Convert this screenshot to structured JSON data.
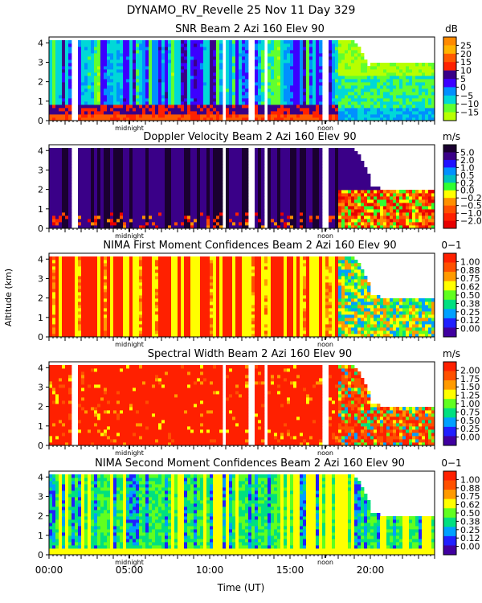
{
  "figure": {
    "title": "DYNAMO_RV_Revelle  25 Nov 11 Day 329",
    "xlabel": "Time (UT)",
    "ylabel": "Altitude (km)"
  },
  "x_axis": {
    "range": [
      0,
      24
    ],
    "ticks": [
      {
        "t": 0,
        "label": "00:00"
      },
      {
        "t": 5,
        "label": "05:00"
      },
      {
        "t": 10,
        "label": "10:00"
      },
      {
        "t": 15,
        "label": "15:00"
      },
      {
        "t": 20,
        "label": "20:00"
      }
    ],
    "markers": [
      {
        "t": 5.0,
        "label": "midnight"
      },
      {
        "t": 17.2,
        "label": "noon"
      }
    ]
  },
  "chart_data": [
    {
      "type": "heatmap",
      "title": "SNR Beam 2 Azi 160 Elev 90",
      "unit": "dB",
      "xlabel": "Time (UT)",
      "ylabel": "Altitude (km)",
      "xlim": [
        0,
        24
      ],
      "ylim": [
        0,
        4.3
      ],
      "yticks": [
        "0",
        "1",
        "2",
        "3",
        "4"
      ],
      "colorbar": {
        "labels": [
          "25",
          "20",
          "15",
          "10",
          "5",
          "0",
          "−5",
          "−10",
          "−15"
        ],
        "colors": [
          "#ff8a00",
          "#ffb400",
          "#ff5a00",
          "#ff2200",
          "#3a0088",
          "#3c00ff",
          "#0090ff",
          "#00d8d8",
          "#60ff30",
          "#b8ff00"
        ]
      }
    },
    {
      "type": "heatmap",
      "title": "Doppler Velocity Beam 2 Azi 160 Elev 90",
      "unit": "m/s",
      "xlabel": "Time (UT)",
      "ylabel": "Altitude (km)",
      "xlim": [
        0,
        24
      ],
      "ylim": [
        0,
        4.3
      ],
      "yticks": [
        "0",
        "1",
        "2",
        "3",
        "4"
      ],
      "colorbar": {
        "labels": [
          "5.0",
          "2.0",
          "1.0",
          "0.5",
          "0.2",
          "0.0",
          "−0.2",
          "−0.5",
          "−1.0",
          "−2.0"
        ],
        "colors": [
          "#1a0030",
          "#3a0088",
          "#2010ff",
          "#0090ff",
          "#00c0c0",
          "#30ff30",
          "#ffff00",
          "#ff9000",
          "#ff5000",
          "#ff2000",
          "#e80000"
        ]
      }
    },
    {
      "type": "heatmap",
      "title": "NIMA First Moment Confidences Beam 2 Azi 160 Elev 90",
      "unit": "0−1",
      "xlabel": "Time (UT)",
      "ylabel": "Altitude (km)",
      "xlim": [
        0,
        24
      ],
      "ylim": [
        0,
        4.3
      ],
      "yticks": [
        "0",
        "1",
        "2",
        "3",
        "4"
      ],
      "colorbar": {
        "labels": [
          "1.00",
          "0.88",
          "0.75",
          "0.62",
          "0.50",
          "0.38",
          "0.25",
          "0.12",
          "0.00"
        ],
        "colors": [
          "#ff2000",
          "#ff5000",
          "#ff9a00",
          "#ffff00",
          "#60ff20",
          "#00e080",
          "#00a0ff",
          "#2020ff",
          "#4000a0"
        ]
      }
    },
    {
      "type": "heatmap",
      "title": "Spectral Width Beam 2 Azi 160 Elev 90",
      "unit": "m/s",
      "xlabel": "Time (UT)",
      "ylabel": "Altitude (km)",
      "xlim": [
        0,
        24
      ],
      "ylim": [
        0,
        4.3
      ],
      "yticks": [
        "0",
        "1",
        "2",
        "3",
        "4"
      ],
      "colorbar": {
        "labels": [
          "2.00",
          "1.75",
          "1.50",
          "1.25",
          "1.00",
          "0.75",
          "0.50",
          "0.25",
          "0.00"
        ],
        "colors": [
          "#ff2000",
          "#ff5000",
          "#ff9a00",
          "#ffff00",
          "#60ff20",
          "#00e080",
          "#00a0ff",
          "#2020ff",
          "#4000a0"
        ]
      }
    },
    {
      "type": "heatmap",
      "title": "NIMA Second Moment Confidences Beam 2 Azi 160 Elev 90",
      "unit": "0−1",
      "xlabel": "Time (UT)",
      "ylabel": "Altitude (km)",
      "xlim": [
        0,
        24
      ],
      "ylim": [
        0,
        4.3
      ],
      "yticks": [
        "0",
        "1",
        "2",
        "3",
        "4"
      ],
      "colorbar": {
        "labels": [
          "1.00",
          "0.88",
          "0.75",
          "0.62",
          "0.50",
          "0.38",
          "0.25",
          "0.12",
          "0.00"
        ],
        "colors": [
          "#ff2000",
          "#ff5000",
          "#ff9a00",
          "#ffff00",
          "#60ff20",
          "#00e080",
          "#00a0ff",
          "#2020ff",
          "#4000a0"
        ]
      }
    }
  ]
}
